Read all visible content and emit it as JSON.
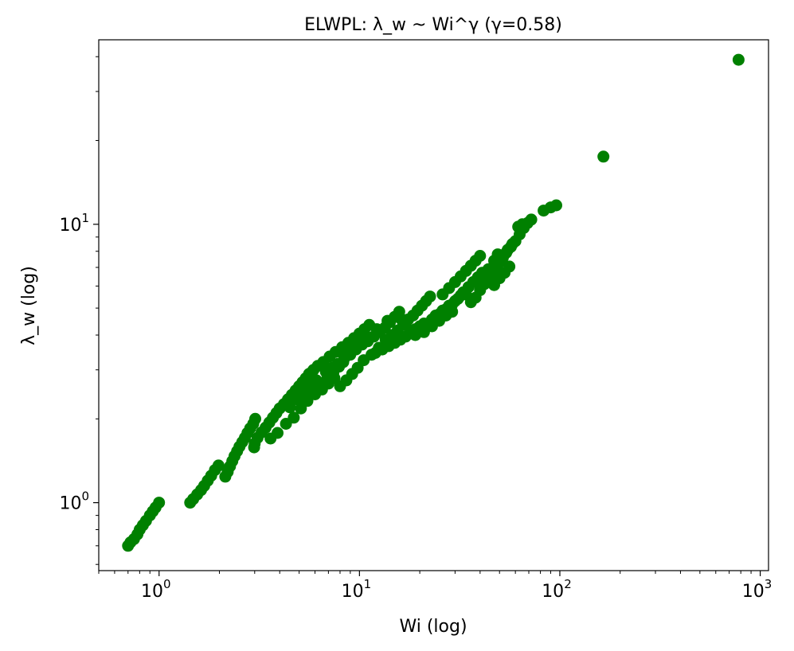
{
  "chart_data": {
    "type": "scatter",
    "title": "ELWPL: λ_w ~ Wi^γ (γ=0.58)",
    "xlabel": "Wi (log)",
    "ylabel": "λ_w (log)",
    "xscale": "log",
    "yscale": "log",
    "xlim": [
      0.5,
      1100
    ],
    "ylim": [
      0.57,
      46
    ],
    "grid": false,
    "marker_color": "#008000",
    "x_ticks": [
      {
        "value": 1,
        "base": "10",
        "exp": "0"
      },
      {
        "value": 10,
        "base": "10",
        "exp": "1"
      },
      {
        "value": 100,
        "base": "10",
        "exp": "2"
      },
      {
        "value": 1000,
        "base": "10",
        "exp": "3"
      }
    ],
    "y_ticks": [
      {
        "value": 1,
        "base": "10",
        "exp": "0"
      },
      {
        "value": 10,
        "base": "10",
        "exp": "1"
      }
    ],
    "trend": {
      "coef": 1.0,
      "exponent": 0.58
    },
    "points": [
      [
        0.7,
        0.7
      ],
      [
        0.72,
        0.72
      ],
      [
        0.75,
        0.74
      ],
      [
        0.78,
        0.77
      ],
      [
        0.8,
        0.8
      ],
      [
        0.83,
        0.83
      ],
      [
        0.86,
        0.86
      ],
      [
        0.9,
        0.9
      ],
      [
        0.93,
        0.93
      ],
      [
        0.96,
        0.96
      ],
      [
        1.0,
        1.0
      ],
      [
        1.43,
        1.0
      ],
      [
        1.48,
        1.03
      ],
      [
        1.55,
        1.07
      ],
      [
        1.62,
        1.11
      ],
      [
        1.68,
        1.15
      ],
      [
        1.75,
        1.2
      ],
      [
        1.82,
        1.25
      ],
      [
        1.9,
        1.31
      ],
      [
        1.98,
        1.36
      ],
      [
        2.14,
        1.24
      ],
      [
        2.2,
        1.29
      ],
      [
        2.26,
        1.35
      ],
      [
        2.32,
        1.41
      ],
      [
        2.38,
        1.47
      ],
      [
        2.45,
        1.53
      ],
      [
        2.52,
        1.59
      ],
      [
        2.6,
        1.65
      ],
      [
        2.68,
        1.71
      ],
      [
        2.76,
        1.78
      ],
      [
        2.85,
        1.85
      ],
      [
        2.95,
        1.92
      ],
      [
        3.02,
        2.0
      ],
      [
        2.98,
        1.58
      ],
      [
        3.0,
        1.63
      ],
      [
        3.1,
        1.71
      ],
      [
        3.25,
        1.79
      ],
      [
        3.4,
        1.86
      ],
      [
        3.55,
        1.94
      ],
      [
        3.7,
        2.02
      ],
      [
        3.85,
        2.1
      ],
      [
        4.0,
        2.18
      ],
      [
        4.2,
        2.26
      ],
      [
        4.4,
        2.35
      ],
      [
        4.6,
        2.44
      ],
      [
        4.8,
        2.53
      ],
      [
        5.0,
        2.62
      ],
      [
        5.2,
        2.71
      ],
      [
        5.4,
        2.8
      ],
      [
        5.6,
        2.9
      ],
      [
        5.9,
        3.0
      ],
      [
        3.6,
        1.7
      ],
      [
        3.9,
        1.78
      ],
      [
        4.3,
        1.92
      ],
      [
        4.7,
        2.02
      ],
      [
        5.1,
        2.18
      ],
      [
        5.5,
        2.32
      ],
      [
        6.0,
        2.45
      ],
      [
        6.5,
        2.55
      ],
      [
        7.0,
        2.68
      ],
      [
        7.5,
        2.8
      ],
      [
        8.0,
        2.62
      ],
      [
        8.6,
        2.75
      ],
      [
        9.2,
        2.9
      ],
      [
        9.8,
        3.05
      ],
      [
        6.2,
        3.1
      ],
      [
        6.6,
        3.2
      ],
      [
        7.1,
        3.35
      ],
      [
        7.6,
        3.48
      ],
      [
        8.2,
        3.62
      ],
      [
        8.8,
        3.75
      ],
      [
        9.4,
        3.9
      ],
      [
        10.0,
        4.05
      ],
      [
        10.6,
        4.2
      ],
      [
        11.2,
        4.35
      ],
      [
        6.8,
        2.95
      ],
      [
        7.3,
        3.05
      ],
      [
        7.8,
        3.15
      ],
      [
        8.4,
        3.3
      ],
      [
        9.0,
        3.4
      ],
      [
        9.6,
        3.55
      ],
      [
        10.3,
        3.7
      ],
      [
        11.0,
        3.8
      ],
      [
        11.8,
        3.95
      ],
      [
        12.6,
        4.1
      ],
      [
        13.4,
        4.25
      ],
      [
        14.2,
        4.45
      ],
      [
        15.0,
        4.65
      ],
      [
        15.8,
        4.85
      ],
      [
        10.5,
        3.25
      ],
      [
        11.5,
        3.4
      ],
      [
        12.5,
        3.6
      ],
      [
        13.5,
        3.85
      ],
      [
        14.5,
        4.0
      ],
      [
        15.5,
        4.15
      ],
      [
        16.5,
        4.35
      ],
      [
        17.5,
        4.55
      ],
      [
        18.5,
        4.7
      ],
      [
        19.5,
        4.9
      ],
      [
        20.5,
        5.1
      ],
      [
        21.5,
        5.3
      ],
      [
        22.5,
        5.5
      ],
      [
        13.0,
        3.55
      ],
      [
        15.0,
        3.75
      ],
      [
        17.0,
        3.95
      ],
      [
        19.0,
        4.2
      ],
      [
        21.0,
        4.4
      ],
      [
        23.0,
        4.55
      ],
      [
        25.0,
        4.75
      ],
      [
        27.0,
        4.95
      ],
      [
        29.0,
        5.15
      ],
      [
        31.0,
        5.4
      ],
      [
        33.0,
        5.7
      ],
      [
        35.0,
        5.95
      ],
      [
        37.0,
        6.2
      ],
      [
        39.0,
        6.45
      ],
      [
        41.0,
        6.7
      ],
      [
        18.0,
        4.05
      ],
      [
        20.0,
        4.3
      ],
      [
        24.0,
        4.7
      ],
      [
        26.0,
        4.9
      ],
      [
        28.0,
        5.1
      ],
      [
        30.0,
        5.3
      ],
      [
        32.0,
        5.55
      ],
      [
        34.0,
        5.6
      ],
      [
        36.0,
        5.25
      ],
      [
        38.0,
        5.45
      ],
      [
        40.0,
        5.8
      ],
      [
        42.0,
        6.1
      ],
      [
        44.0,
        6.4
      ],
      [
        46.0,
        6.7
      ],
      [
        48.0,
        7.0
      ],
      [
        50.0,
        7.3
      ],
      [
        52.0,
        7.6
      ],
      [
        54.0,
        7.9
      ],
      [
        57.0,
        8.3
      ],
      [
        60.0,
        8.7
      ],
      [
        63.0,
        9.2
      ],
      [
        66.0,
        9.7
      ],
      [
        69.0,
        10.1
      ],
      [
        72.0,
        10.4
      ],
      [
        83.0,
        11.2
      ],
      [
        90.0,
        11.5
      ],
      [
        96.0,
        11.7
      ],
      [
        47.0,
        6.05
      ],
      [
        50.0,
        6.4
      ],
      [
        53.0,
        6.7
      ],
      [
        56.0,
        7.05
      ],
      [
        44.0,
        6.9
      ],
      [
        47.0,
        7.4
      ],
      [
        49.0,
        7.8
      ],
      [
        55.0,
        8.1
      ],
      [
        58.0,
        8.5
      ],
      [
        62.0,
        9.8
      ],
      [
        65.0,
        10.0
      ],
      [
        26.0,
        5.6
      ],
      [
        28.0,
        5.9
      ],
      [
        30.0,
        6.2
      ],
      [
        32.0,
        6.5
      ],
      [
        34.0,
        6.8
      ],
      [
        36.0,
        7.1
      ],
      [
        38.0,
        7.4
      ],
      [
        40.0,
        7.7
      ],
      [
        16.0,
        4.6
      ],
      [
        17.0,
        4.4
      ],
      [
        19.0,
        4.0
      ],
      [
        21.0,
        4.1
      ],
      [
        23.0,
        4.3
      ],
      [
        25.0,
        4.5
      ],
      [
        27.0,
        4.7
      ],
      [
        29.0,
        4.85
      ],
      [
        12.0,
        3.45
      ],
      [
        14.0,
        3.65
      ],
      [
        16.0,
        3.85
      ],
      [
        18.0,
        4.1
      ],
      [
        20.0,
        4.25
      ],
      [
        8.5,
        3.5
      ],
      [
        9.1,
        3.65
      ],
      [
        9.7,
        3.8
      ],
      [
        10.8,
        3.95
      ],
      [
        12.2,
        4.2
      ],
      [
        13.8,
        4.5
      ],
      [
        6.4,
        2.65
      ],
      [
        6.9,
        2.78
      ],
      [
        7.4,
        2.92
      ],
      [
        7.9,
        3.08
      ],
      [
        8.3,
        3.2
      ],
      [
        5.3,
        2.48
      ],
      [
        5.7,
        2.6
      ],
      [
        6.1,
        2.75
      ],
      [
        4.5,
        2.2
      ],
      [
        4.9,
        2.35
      ],
      [
        5.8,
        2.95
      ],
      [
        165,
        17.5
      ],
      [
        780,
        39.0
      ]
    ]
  }
}
